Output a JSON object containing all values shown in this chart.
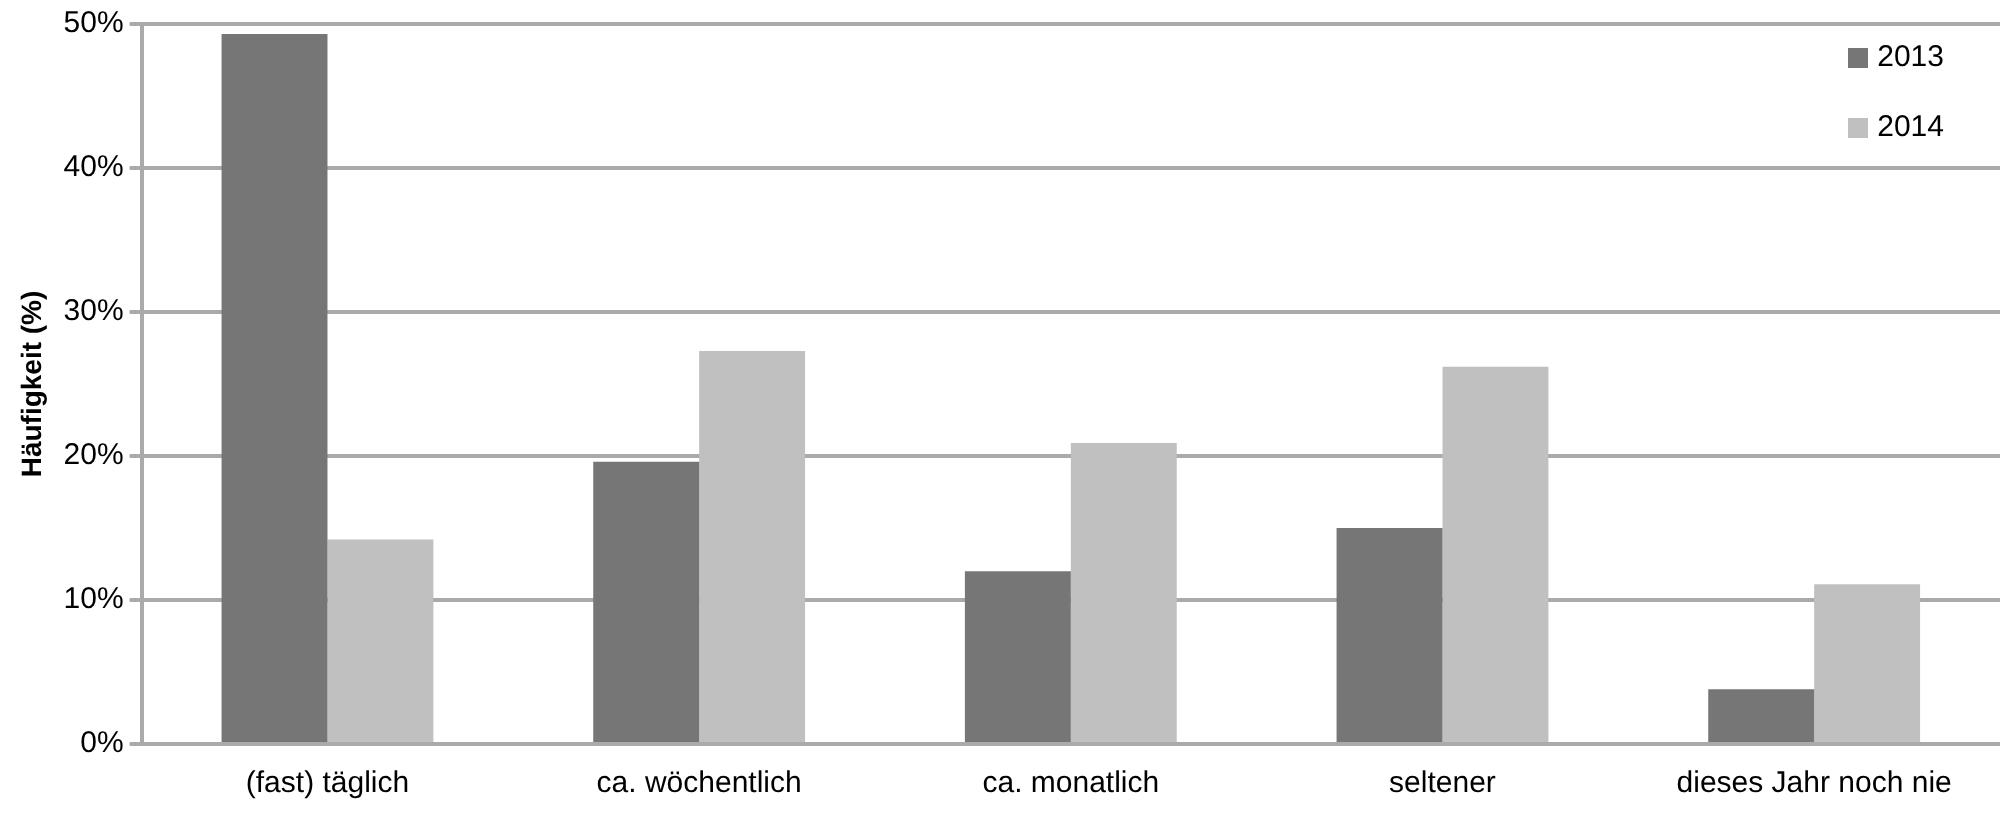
{
  "chart_data": {
    "type": "bar",
    "ylabel": "Häufigkeit (%)",
    "categories": [
      "(fast) täglich",
      "ca. wöchentlich",
      "ca. monatlich",
      "seltener",
      "dieses Jahr noch nie"
    ],
    "series": [
      {
        "name": "2013",
        "color": "#767676",
        "values": [
          49.3,
          19.6,
          12.0,
          15.0,
          3.8
        ]
      },
      {
        "name": "2014",
        "color": "#c0c0c0",
        "values": [
          14.2,
          27.3,
          20.9,
          26.2,
          11.1
        ]
      }
    ],
    "ylim": [
      0,
      50
    ],
    "yticks": [
      {
        "value": 0,
        "label": "0%"
      },
      {
        "value": 10,
        "label": "10%"
      },
      {
        "value": 20,
        "label": "20%"
      },
      {
        "value": 30,
        "label": "30%"
      },
      {
        "value": 40,
        "label": "40%"
      },
      {
        "value": 50,
        "label": "50%"
      }
    ],
    "grid": "y",
    "legend": "top right"
  }
}
